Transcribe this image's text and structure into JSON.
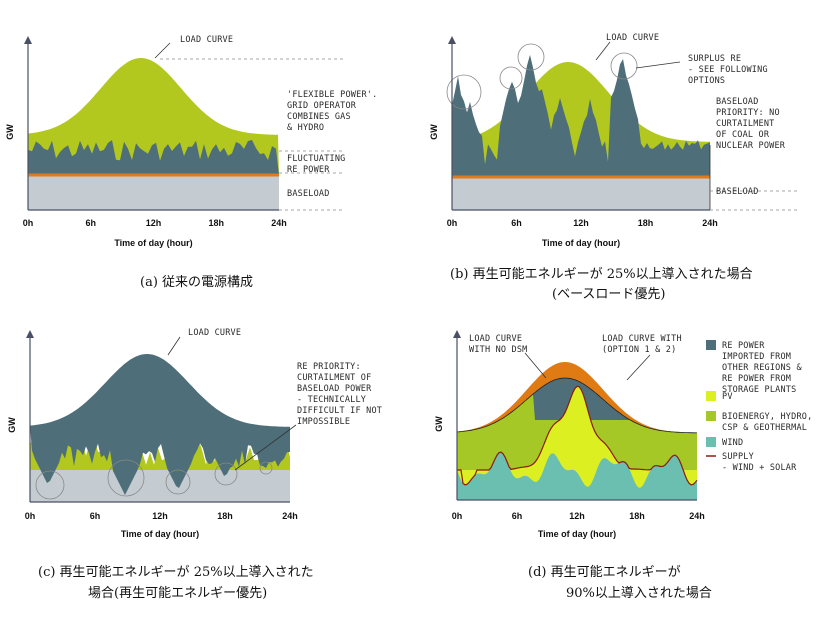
{
  "colors": {
    "baseload": "#c5ccd1",
    "re_power": "#4e6e79",
    "flexible": "#b3c81f",
    "orange_line": "#e07a1a",
    "axis": "#4a4f66",
    "pv": "#dcf021",
    "bio": "#a5c826",
    "wind": "#6bbfb0",
    "load_no_dsm": "#e07a12",
    "supply_line": "#8a1c10"
  },
  "common": {
    "y_axis_label": "GW",
    "x_axis_label": "Time of day (hour)",
    "x_ticks": [
      "0h",
      "6h",
      "12h",
      "18h",
      "24h"
    ]
  },
  "chart_data": [
    {
      "id": "a",
      "type": "area",
      "x_ticks": [
        "0h",
        "6h",
        "12h",
        "18h",
        "24h"
      ],
      "xlabel": "Time of day (hour)",
      "ylabel": "GW",
      "annotations": {
        "load_curve": "LOAD CURVE",
        "flexible": [
          "'FLEXIBLE POWER'.",
          "GRID OPERATOR",
          "COMBINES GAS",
          "& HYDRO"
        ],
        "fluctuating": [
          "FLUCTUATING",
          "RE POWER"
        ],
        "baseload": "BASELOAD"
      },
      "caption": "(a)  従来の電源構成"
    },
    {
      "id": "b",
      "type": "area",
      "x_ticks": [
        "0h",
        "6h",
        "12h",
        "18h",
        "24h"
      ],
      "xlabel": "Time of day (hour)",
      "ylabel": "GW",
      "annotations": {
        "load_curve": "LOAD CURVE",
        "surplus": [
          "SURPLUS RE",
          "- SEE FOLLOWING",
          "OPTIONS"
        ],
        "priority": [
          "BASELOAD",
          "PRIORITY: NO",
          "CURTAILMENT",
          "OF COAL OR",
          "NUCLEAR POWER"
        ],
        "baseload": "BASELOAD"
      },
      "caption": [
        "(b)  再生可能エネルギーが 25%以上導入された場合",
        "(ベースロード優先)"
      ]
    },
    {
      "id": "c",
      "type": "area",
      "x_ticks": [
        "0h",
        "6h",
        "12h",
        "18h",
        "24h"
      ],
      "xlabel": "Time of day (hour)",
      "ylabel": "GW",
      "annotations": {
        "load_curve": "LOAD CURVE",
        "re_priority": [
          "RE PRIORITY:",
          "CURTAILMENT OF",
          "BASELOAD POWER",
          "- TECHNICALLY",
          "DIFFICULT IF NOT",
          "IMPOSSIBLE"
        ]
      },
      "caption": [
        "(c)  再生可能エネルギーが 25%以上導入された",
        "場合(再生可能エネルギー優先)"
      ]
    },
    {
      "id": "d",
      "type": "area",
      "x_ticks": [
        "0h",
        "6h",
        "12h",
        "18h",
        "24h"
      ],
      "xlabel": "Time of day (hour)",
      "ylabel": "GW",
      "annotations": {
        "no_dsm": [
          "LOAD CURVE",
          "WITH NO DSM"
        ],
        "with_option": [
          "LOAD CURVE WITH",
          "(OPTION 1 & 2)"
        ]
      },
      "legend": [
        {
          "name": "RE POWER IMPORTED FROM OTHER REGIONS & RE POWER FROM STORAGE PLANTS",
          "lines": [
            "RE POWER",
            "IMPORTED FROM",
            "OTHER REGIONS &",
            "RE POWER FROM",
            "STORAGE PLANTS"
          ],
          "color": "#4e6e79"
        },
        {
          "name": "PV",
          "lines": [
            "PV"
          ],
          "color": "#dcf021"
        },
        {
          "name": "BIOENERGY, HYDRO, CSP & GEOTHERMAL",
          "lines": [
            "BIOENERGY, HYDRO,",
            "CSP & GEOTHERMAL"
          ],
          "color": "#a5c826"
        },
        {
          "name": "WIND",
          "lines": [
            "WIND"
          ],
          "color": "#6bbfb0"
        },
        {
          "name": "SUPPLY - WIND + SOLAR",
          "lines": [
            "SUPPLY",
            "- WIND + SOLAR"
          ],
          "color": "#8a1c10"
        }
      ],
      "caption": [
        "(d)  再生可能エネルギーが",
        "90%以上導入された場合"
      ]
    }
  ]
}
